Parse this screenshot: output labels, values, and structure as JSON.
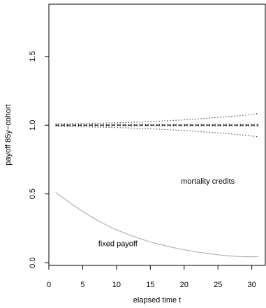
{
  "chart_data": {
    "type": "line",
    "title": "",
    "xlabel": "elapsed time t",
    "ylabel": "payoff 85y−cohort",
    "xlim": [
      0,
      32
    ],
    "ylim": [
      -0.02,
      1.88
    ],
    "x_ticks": [
      0,
      5,
      10,
      15,
      20,
      25,
      30
    ],
    "y_ticks": [
      0.0,
      0.5,
      1.0,
      1.5
    ],
    "y_tick_labels": [
      "0.0",
      "0.5",
      "1.0",
      "1.5"
    ],
    "grid": false,
    "annotations": [
      {
        "text": "mortality credits",
        "x": 23.5,
        "y": 0.575
      },
      {
        "text": "fixed payoff",
        "x": 10.2,
        "y": 0.12
      }
    ],
    "series": [
      {
        "style": "solid",
        "color": "#b3b3b3",
        "x": [
          1,
          2,
          3,
          4,
          5,
          6,
          7,
          8,
          9,
          10,
          11,
          12,
          13,
          14,
          15,
          16,
          17,
          18,
          19,
          20,
          21,
          22,
          23,
          24,
          25,
          26,
          27,
          28,
          29,
          30,
          31
        ],
        "values": [
          0.51,
          0.475,
          0.44,
          0.405,
          0.372,
          0.342,
          0.313,
          0.286,
          0.262,
          0.238,
          0.219,
          0.2,
          0.182,
          0.166,
          0.151,
          0.138,
          0.126,
          0.114,
          0.103,
          0.094,
          0.085,
          0.077,
          0.07,
          0.063,
          0.057,
          0.052,
          0.048,
          0.045,
          0.043,
          0.043,
          0.045
        ]
      },
      {
        "style": "dashed",
        "color": "#000000",
        "x": [
          1,
          31
        ],
        "values": [
          1.0,
          1.0
        ]
      },
      {
        "style": "dotted",
        "color": "#000000",
        "x": [
          1,
          3,
          5,
          7,
          9,
          11,
          13,
          15,
          17,
          19,
          21,
          23,
          25,
          27,
          29,
          31
        ],
        "values": [
          1.01,
          1.011,
          1.012,
          1.014,
          1.016,
          1.019,
          1.022,
          1.026,
          1.031,
          1.036,
          1.042,
          1.049,
          1.056,
          1.064,
          1.073,
          1.085
        ]
      },
      {
        "style": "dotted",
        "color": "#000000",
        "x": [
          1,
          3,
          5,
          7,
          9,
          11,
          13,
          15,
          17,
          19,
          21,
          23,
          25,
          27,
          29,
          31
        ],
        "values": [
          0.99,
          0.989,
          0.988,
          0.986,
          0.984,
          0.981,
          0.978,
          0.974,
          0.969,
          0.964,
          0.958,
          0.951,
          0.944,
          0.936,
          0.927,
          0.915
        ]
      },
      {
        "style": "dotted",
        "color": "#000000",
        "x": [
          1,
          4,
          7,
          10,
          13,
          16,
          19,
          22,
          25,
          28,
          31
        ],
        "values": [
          1.003,
          1.003,
          1.004,
          1.004,
          1.005,
          1.005,
          1.005,
          1.006,
          1.006,
          1.006,
          1.007
        ]
      },
      {
        "style": "dotted",
        "color": "#000000",
        "x": [
          1,
          4,
          7,
          10,
          13,
          16,
          19,
          22,
          25,
          28,
          31
        ],
        "values": [
          0.997,
          0.997,
          0.996,
          0.996,
          0.995,
          0.995,
          0.995,
          0.994,
          0.994,
          0.994,
          0.993
        ]
      }
    ]
  }
}
